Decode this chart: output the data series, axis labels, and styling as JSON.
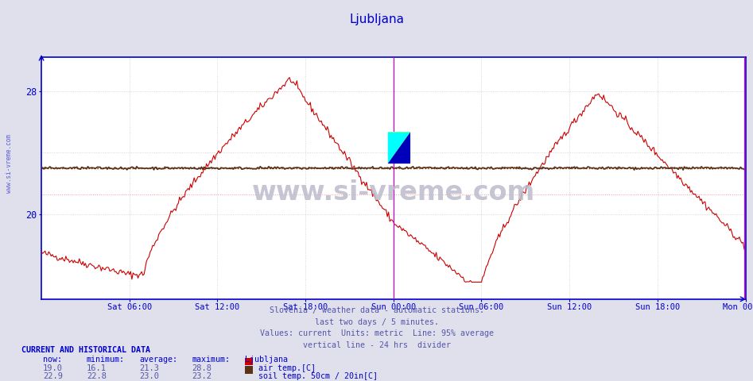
{
  "title": "Ljubljana",
  "title_color": "#0000cc",
  "bg_color": "#e0e0ec",
  "plot_bg_color": "#ffffff",
  "x_tick_labels": [
    "Sat 06:00",
    "Sat 12:00",
    "Sat 18:00",
    "Sun 00:00",
    "Sun 06:00",
    "Sun 12:00",
    "Sun 18:00",
    "Mon 00:00"
  ],
  "y_ticks": [
    20,
    28
  ],
  "y_min": 14.5,
  "y_max": 30.2,
  "grid_color": "#cccccc",
  "axis_color": "#0000cc",
  "subtitle_lines": [
    "Slovenia / weather data - automatic stations.",
    "last two days / 5 minutes.",
    "Values: current  Units: metric  Line: 95% average",
    "vertical line - 24 hrs  divider"
  ],
  "subtitle_color": "#5555aa",
  "watermark_text": "www.si-vreme.com",
  "watermark_color": "#bbbbcc",
  "vertical_line_color": "#cc00cc",
  "air_temp_color": "#cc0000",
  "soil_temp_color": "#5c3317",
  "air_avg": 21.3,
  "soil_avg": 23.0,
  "air_min": 16.1,
  "air_max": 28.8,
  "soil_min": 22.8,
  "soil_max": 23.2,
  "n_points": 576,
  "vertical_line_x": 288,
  "current_and_historical": "CURRENT AND HISTORICAL DATA",
  "table_headers": [
    "now:",
    "minimum:",
    "average:",
    "maximum:",
    "Ljubljana"
  ],
  "row1": {
    "values": [
      "19.0",
      "16.1",
      "21.3",
      "28.8"
    ],
    "label": "air temp.[C]",
    "color": "#cc0000"
  },
  "row2": {
    "values": [
      "22.9",
      "22.8",
      "23.0",
      "23.2"
    ],
    "label": "soil temp. 50cm / 20in[C]",
    "color": "#5c3317"
  }
}
